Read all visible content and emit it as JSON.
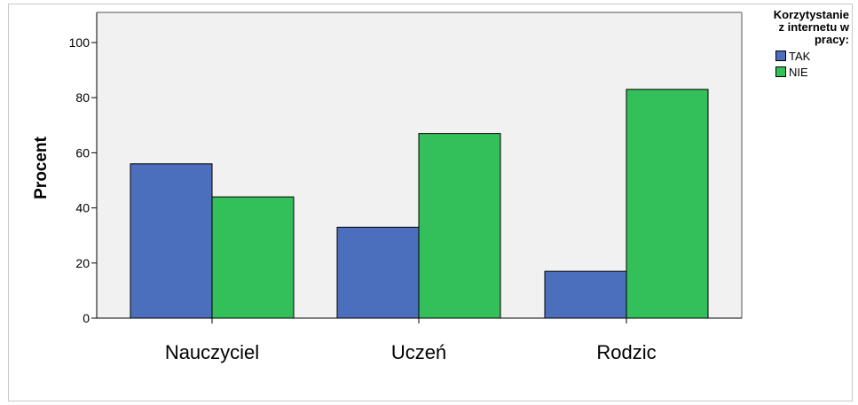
{
  "chart_data": {
    "type": "bar",
    "categories": [
      "Nauczyciel",
      "Uczeń",
      "Rodzic"
    ],
    "series": [
      {
        "name": "TAK",
        "values": [
          56,
          33,
          17
        ],
        "color": "#4b6ebd"
      },
      {
        "name": "NIE",
        "values": [
          44,
          67,
          83
        ],
        "color": "#33bf5a"
      }
    ],
    "ylabel": "Procent",
    "xlabel": "",
    "ylim": [
      0,
      100
    ],
    "yticks": [
      0,
      20,
      40,
      60,
      80,
      100
    ],
    "plot_background": "#f1f1f1",
    "legend": {
      "title": [
        "Korzytystanie",
        "z internetu w",
        "pracy:"
      ],
      "position": "right"
    }
  }
}
